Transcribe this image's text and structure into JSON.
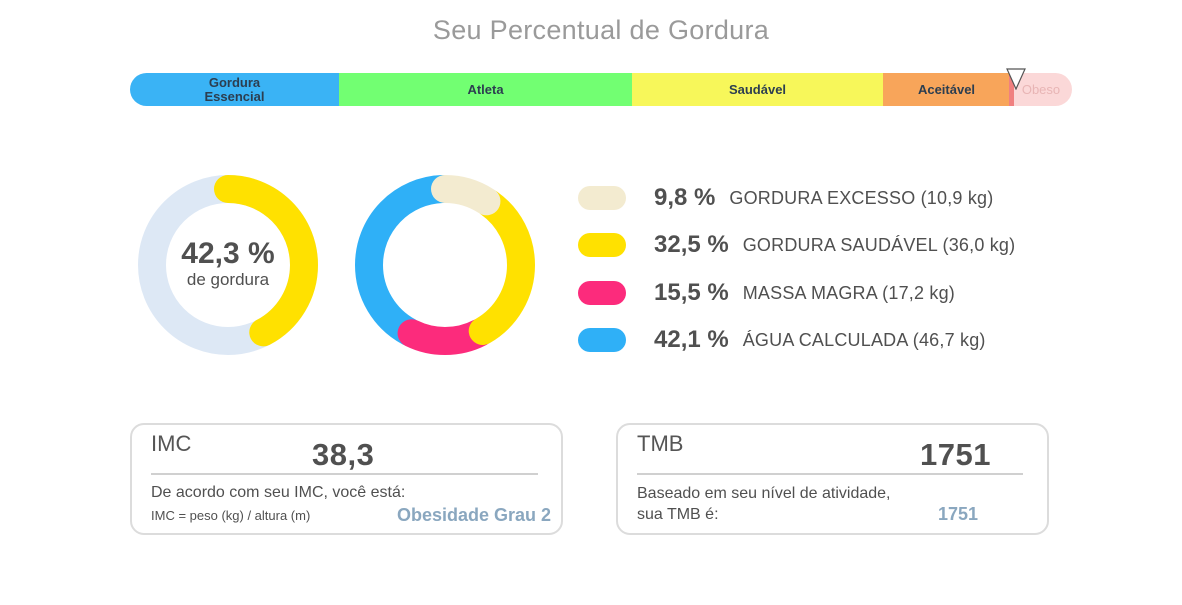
{
  "title": "Seu Percentual de Gordura",
  "categories": [
    {
      "label": "Gordura Essencial",
      "color": "#3ab3f5"
    },
    {
      "label": "Atleta",
      "color": "#72ff72"
    },
    {
      "label": "Saudável",
      "color": "#f7f75a"
    },
    {
      "label": "Aceitável",
      "color": "#f8a55a"
    },
    {
      "label": "Obeso",
      "color": "#fbd8d8"
    }
  ],
  "summary": {
    "percent": "42,3 %",
    "caption": "de gordura",
    "fat_fraction": 0.423
  },
  "legend": [
    {
      "percent": "9,8 %",
      "label": "GORDURA EXCESSO (10,9 kg)",
      "color": "#f3ebd0",
      "value": 9.8
    },
    {
      "percent": "32,5 %",
      "label": "GORDURA SAUDÁVEL (36,0 kg)",
      "color": "#ffe100",
      "value": 32.5
    },
    {
      "percent": "15,5 %",
      "label": "MASSA MAGRA (17,2 kg)",
      "color": "#fc2b7c",
      "value": 15.5
    },
    {
      "percent": "42,1 %",
      "label": "ÁGUA CALCULADA (46,7 kg)",
      "color": "#2fb0f7",
      "value": 42.1
    }
  ],
  "imc": {
    "title": "IMC",
    "value": "38,3",
    "line1": "De acordo com seu IMC, você está:",
    "formula": "IMC = peso (kg) / altura (m)",
    "classification": "Obesidade Grau 2"
  },
  "tmb": {
    "title": "TMB",
    "value": "1751",
    "line1": "Baseado em seu nível de atividade,",
    "line2": "sua TMB é:",
    "result": "1751"
  }
}
